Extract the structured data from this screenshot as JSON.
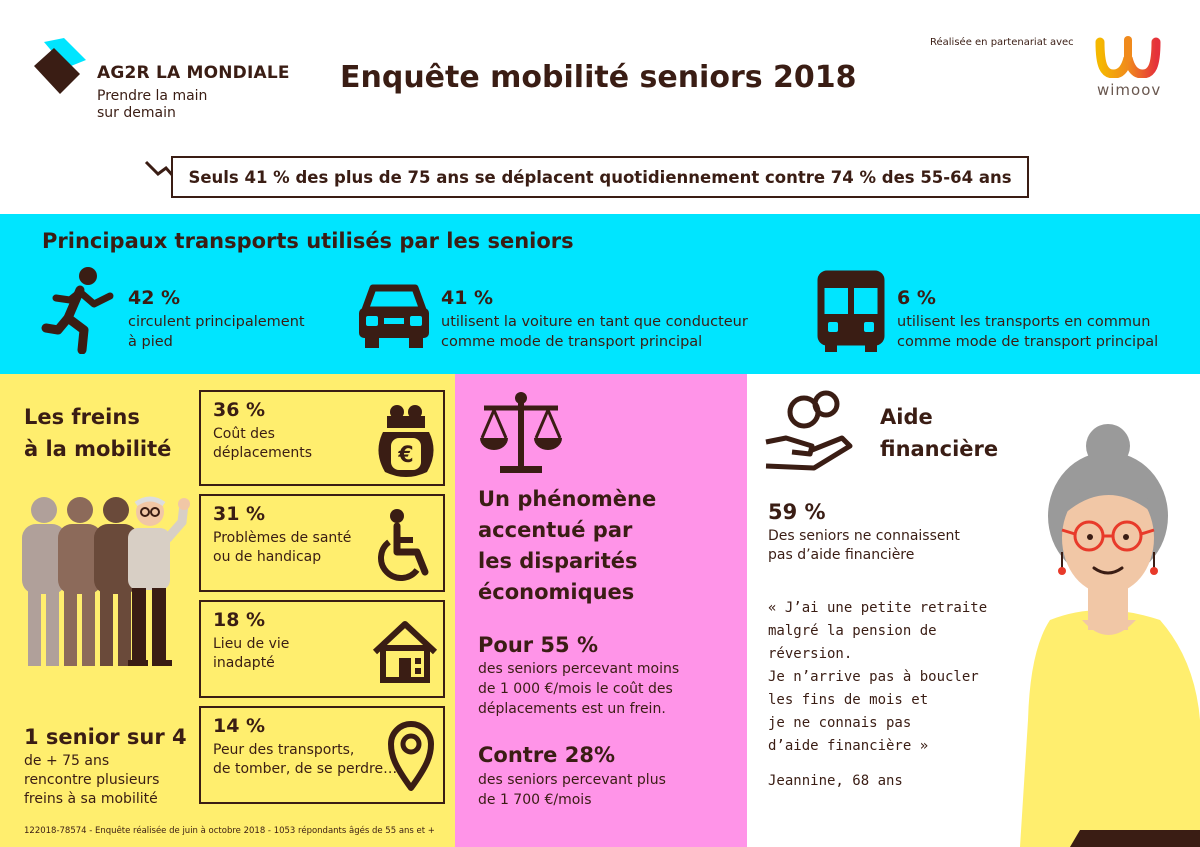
{
  "header": {
    "brand_name": "AG2R LA MONDIALE",
    "tagline_line1": "Prendre la main",
    "tagline_line2": "sur demain",
    "title": "Enquête mobilité seniors 2018",
    "partner_text": "Réalisée en partenariat avec",
    "partner_name": "wimoov"
  },
  "headline": "Seuls 41 % des plus de 75 ans se déplacent quotidiennement contre 74 % des 55-64 ans",
  "transports": {
    "title": "Principaux transports utilisés par les seniors",
    "items": [
      {
        "pct": "42 %",
        "line1": "circulent principalement",
        "line2": "à pied",
        "icon": "walking-person-icon"
      },
      {
        "pct": "41 %",
        "line1": "utilisent la voiture en tant que conducteur",
        "line2": "comme mode de transport principal",
        "icon": "car-icon"
      },
      {
        "pct": "6 %",
        "line1": "utilisent les transports en commun",
        "line2": "comme mode de transport principal",
        "icon": "bus-icon"
      }
    ]
  },
  "freins": {
    "title_line1": "Les freins",
    "title_line2": "à la mobilité",
    "cards": [
      {
        "pct": "36 %",
        "line1": "Coût des",
        "line2": "déplacements",
        "icon": "purse-euro-icon"
      },
      {
        "pct": "31 %",
        "line1": "Problèmes de santé",
        "line2": "ou de handicap",
        "icon": "wheelchair-icon"
      },
      {
        "pct": "18 %",
        "line1": "Lieu de vie",
        "line2": "inadapté",
        "icon": "house-icon"
      },
      {
        "pct": "14 %",
        "line1": "Peur des transports,",
        "line2": "de tomber, de se perdre…",
        "icon": "location-pin-icon"
      }
    ],
    "senior_big": "1 senior sur 4",
    "senior_line1": "de + 75 ans",
    "senior_line2": "rencontre plusieurs",
    "senior_line3": "freins à sa mobilité",
    "footnote": "122018-78574 - Enquête réalisée de juin à octobre 2018 - 1053 répondants âgés de 55 ans et +"
  },
  "economie": {
    "line1": "Un phénomène",
    "line2": "accentué par",
    "line3": "les disparités",
    "line4": "économiques",
    "pour_title": "Pour 55 %",
    "pour_line1": "des seniors percevant moins",
    "pour_line2": "de 1 000 €/mois le coût des",
    "pour_line3": "déplacements est un frein.",
    "contre_title": "Contre 28%",
    "contre_line1": "des seniors percevant plus",
    "contre_line2": "de 1 700 €/mois"
  },
  "aide": {
    "title_line1": "Aide",
    "title_line2": "financière",
    "pct": "59 %",
    "pct_line1": "Des seniors ne connaissent",
    "pct_line2": "pas d’aide financière",
    "quote_lines": [
      "« J’ai une petite retraite",
      "malgré la pension de",
      "réversion.",
      "Je n’arrive pas à boucler",
      "les fins de mois et",
      "je ne connais pas",
      "d’aide financière »"
    ],
    "author": "Jeannine, 68 ans"
  },
  "colors": {
    "brown": "#3a1d14",
    "cyan": "#00e5ff",
    "yellow": "#ffee6e",
    "pink": "#ff94e8"
  }
}
